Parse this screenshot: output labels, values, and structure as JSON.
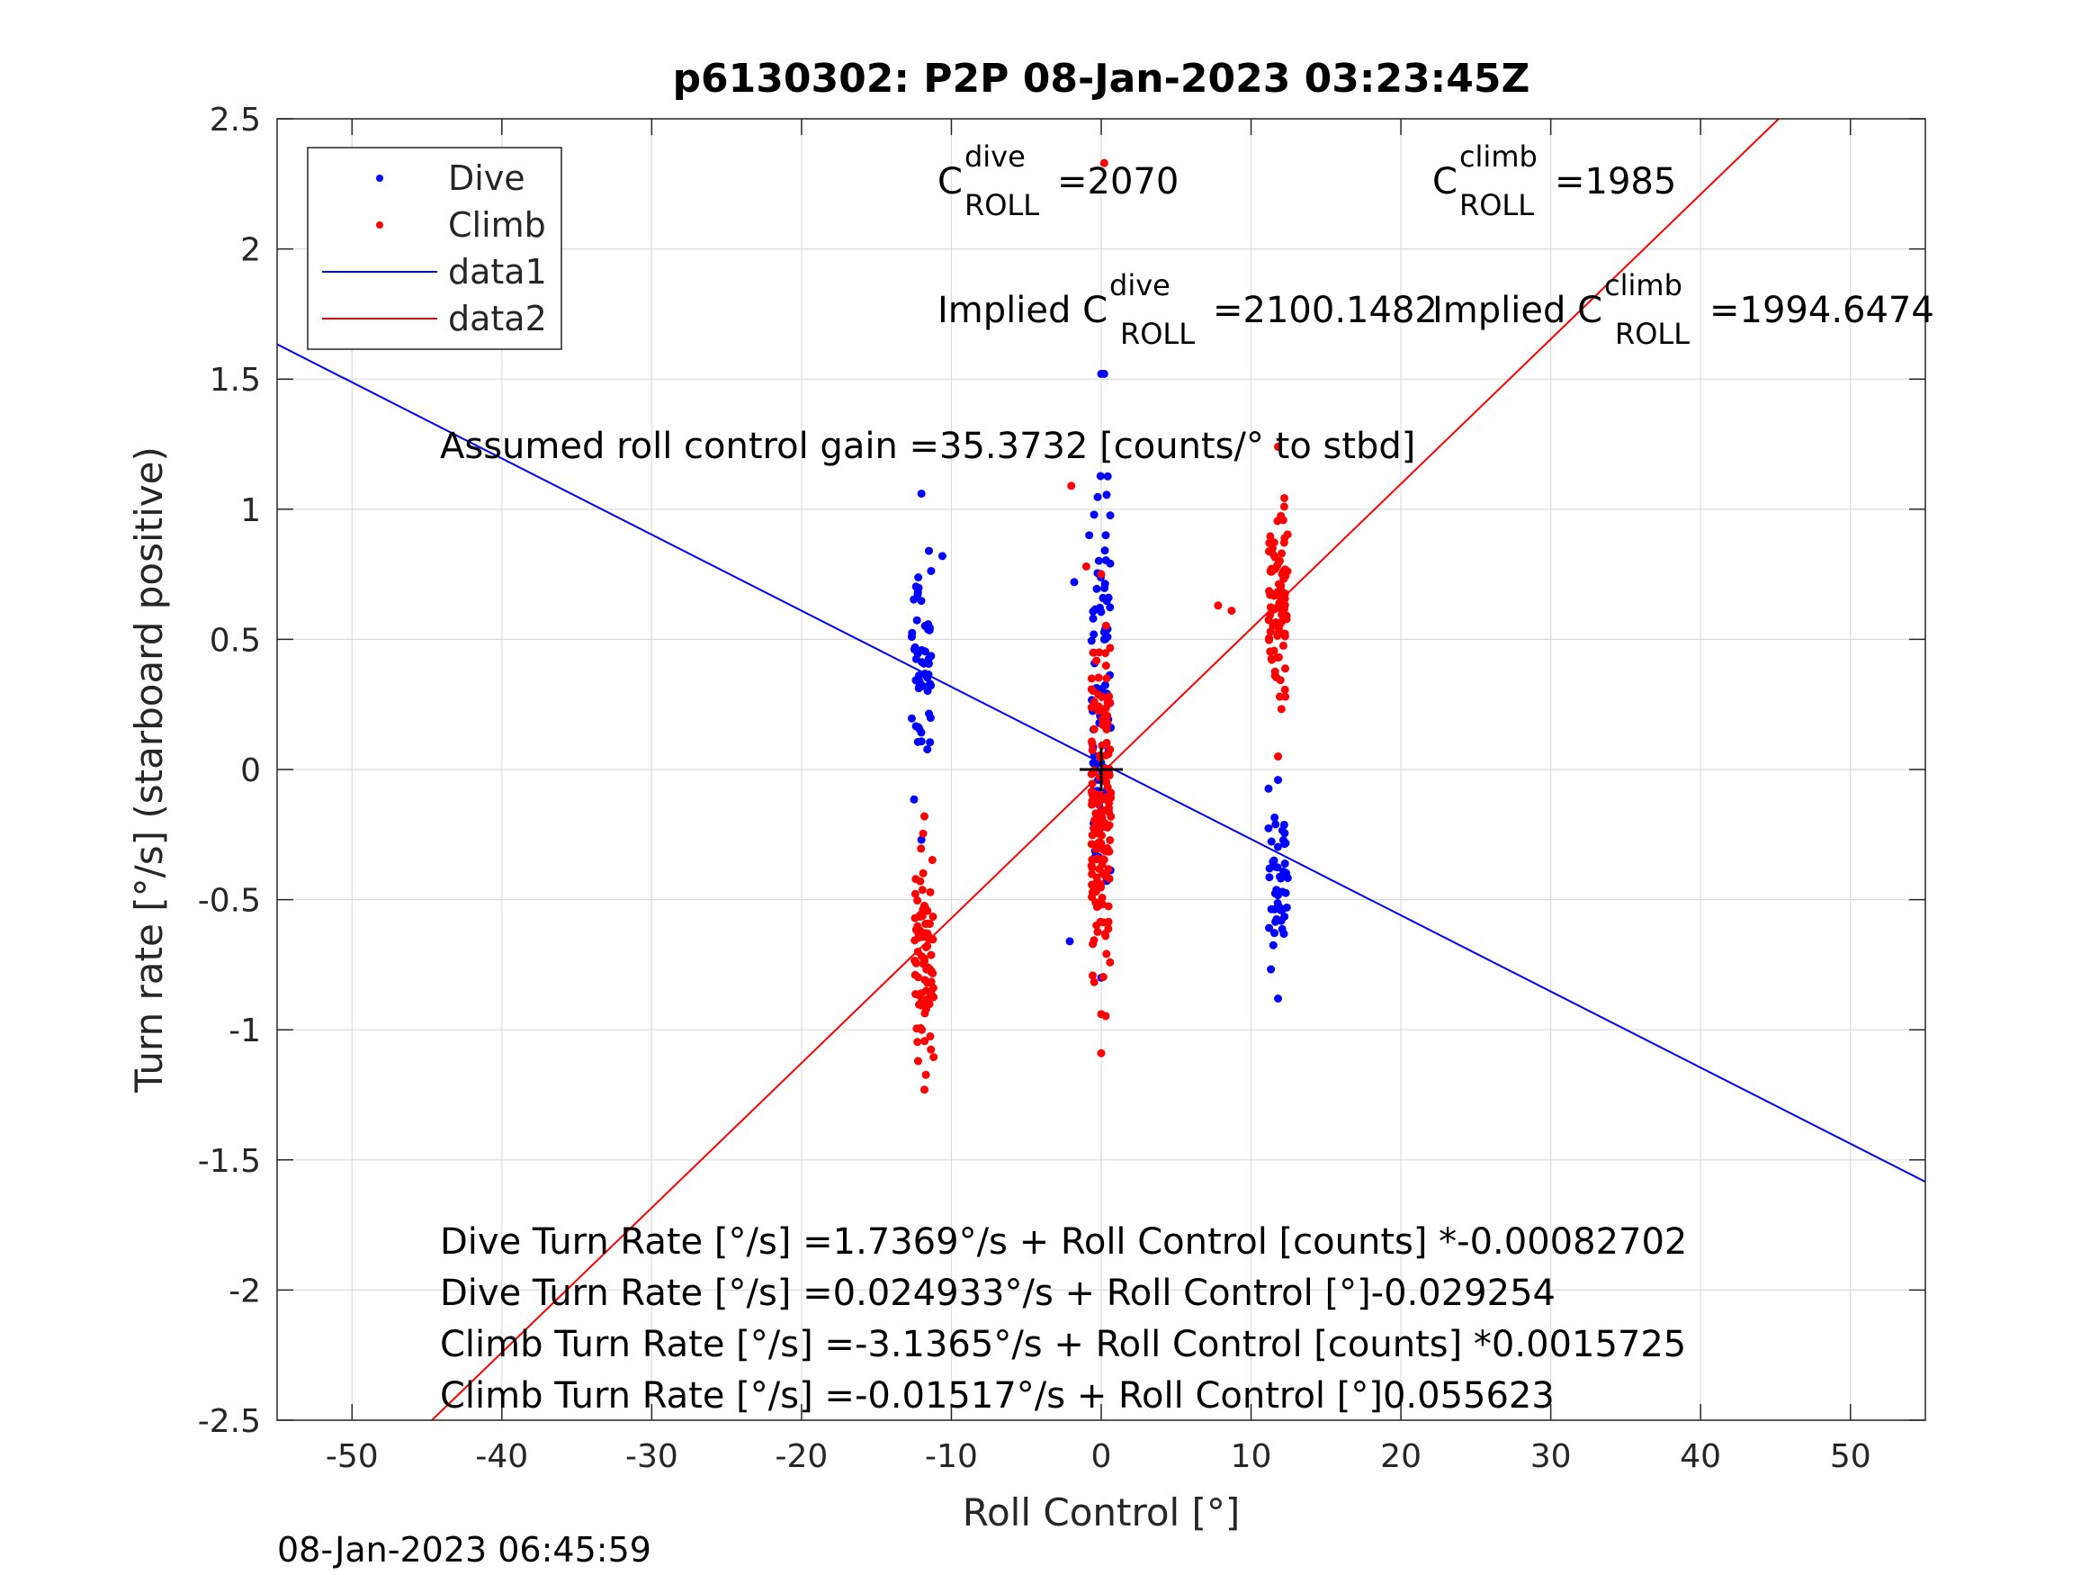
{
  "chart_data": {
    "type": "scatter",
    "title": "p6130302: P2P 08-Jan-2023 03:23:45Z",
    "xlabel": "Roll Control [°]",
    "ylabel": "Turn rate [°/s] (starboard positive)",
    "xlim": [
      -55,
      55
    ],
    "ylim": [
      -2.5,
      2.5
    ],
    "xticks": [
      -50,
      -40,
      -30,
      -20,
      -10,
      0,
      10,
      20,
      30,
      40,
      50
    ],
    "xtick_labels": [
      "-50",
      "-40",
      "-30",
      "-20",
      "-10",
      "0",
      "10",
      "20",
      "30",
      "40",
      "50"
    ],
    "yticks": [
      -2.5,
      -2,
      -1.5,
      -1,
      -0.5,
      0,
      0.5,
      1,
      1.5,
      2,
      2.5
    ],
    "ytick_labels": [
      "-2.5",
      "-2",
      "-1.5",
      "-1",
      "-0.5",
      "0",
      "0.5",
      "1",
      "1.5",
      "2",
      "2.5"
    ],
    "grid": true,
    "legend_position": "top-left",
    "colors": {
      "dive": "#0000ff",
      "climb": "#ff0000",
      "marker": "#000000"
    },
    "legend": [
      {
        "label": "Dive",
        "kind": "marker",
        "color": "#0000ff"
      },
      {
        "label": "Climb",
        "kind": "marker",
        "color": "#ff0000"
      },
      {
        "label": "data1",
        "kind": "line",
        "color": "#0000ff"
      },
      {
        "label": "data2",
        "kind": "line",
        "color": "#ff0000"
      }
    ],
    "series": [
      {
        "name": "Dive",
        "kind": "scatter",
        "color": "#0000ff",
        "clusters": [
          {
            "x": -12,
            "y_min": -0.27,
            "y_max": 1.06,
            "n": 55
          },
          {
            "x": 0,
            "y_min": -0.8,
            "y_max": 1.52,
            "n": 75
          },
          {
            "x": 11.8,
            "y_min": -0.88,
            "y_max": -0.04,
            "n": 50
          }
        ],
        "extra_points": [
          [
            -2.1,
            -0.66
          ],
          [
            -1.8,
            0.72
          ],
          [
            -0.8,
            0.9
          ],
          [
            0.3,
            0.9
          ],
          [
            0.2,
            1.52
          ],
          [
            -11.5,
            0.84
          ],
          [
            -10.6,
            0.82
          ]
        ]
      },
      {
        "name": "Climb",
        "kind": "scatter",
        "color": "#ff0000",
        "clusters": [
          {
            "x": -11.8,
            "y_min": -1.23,
            "y_max": -0.18,
            "n": 90
          },
          {
            "x": 0,
            "y_min": -1.09,
            "y_max": 0.75,
            "n": 160
          },
          {
            "x": 11.8,
            "y_min": 0.05,
            "y_max": 1.24,
            "n": 85
          }
        ],
        "extra_points": [
          [
            7.8,
            0.63
          ],
          [
            8.7,
            0.61
          ],
          [
            -1.0,
            0.78
          ],
          [
            0.2,
            2.33
          ],
          [
            -2.0,
            1.09
          ],
          [
            0.0,
            -0.94
          ]
        ]
      },
      {
        "name": "data1",
        "kind": "line",
        "color": "#0000ff",
        "slope": -0.029254,
        "intercept": 0.024933
      },
      {
        "name": "data2",
        "kind": "line",
        "color": "#ff0000",
        "slope": 0.055623,
        "intercept": -0.01517
      }
    ],
    "crosshair": {
      "x": 0,
      "y": 0
    },
    "annotations": {
      "c_roll_dive": {
        "prefix": "C",
        "sup": "dive",
        "sub": "ROLL",
        "value": "=2070"
      },
      "c_roll_climb": {
        "prefix": "C",
        "sup": "climb",
        "sub": "ROLL",
        "value": "=1985"
      },
      "implied_dive": {
        "prefix": "Implied C",
        "sup": "dive",
        "sub": "ROLL",
        "value": "=2100.1482"
      },
      "implied_climb": {
        "prefix": "Implied C",
        "sup": "climb",
        "sub": "ROLL",
        "value": "=1994.6474"
      },
      "gain": "Assumed roll control gain =35.3732 [counts/° to stbd]",
      "fit_lines": [
        "Dive Turn Rate [°/s] =1.7369°/s + Roll Control [counts] *-0.00082702",
        "Dive Turn Rate [°/s] =0.024933°/s + Roll Control [°]-0.029254",
        "Climb Turn Rate [°/s] =-3.1365°/s + Roll Control [counts] *0.0015725",
        "Climb Turn Rate [°/s] =-0.01517°/s + Roll Control [°]0.055623"
      ]
    },
    "footer_timestamp": "08-Jan-2023 06:45:59"
  }
}
